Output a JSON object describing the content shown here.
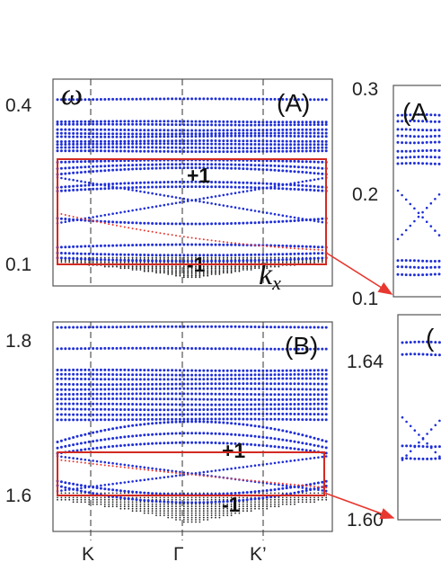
{
  "chart_data": [
    {
      "id": "A",
      "type": "scatter",
      "panel_label": "(A)",
      "ylabel": "ω",
      "xlabel": "k_x",
      "y_ticks": [
        "0.4",
        "0.1"
      ],
      "ylim": [
        0.08,
        0.43
      ],
      "colors": {
        "edge": "#1f2fd6",
        "bulk": "#222222",
        "highlight": "#e8372f",
        "gridline": "#444444"
      },
      "annotations": [
        "+1",
        "-1"
      ],
      "flat_bands": [
        0.396,
        0.358,
        0.353,
        0.344,
        0.338,
        0.333,
        0.325,
        0.32,
        0.314,
        0.308
      ],
      "dispersive_bands": [
        {
          "center": 0.289,
          "curvature": -0.004
        },
        {
          "center": 0.278,
          "curvature": -0.008
        },
        {
          "center": 0.268,
          "curvature": -0.012
        },
        {
          "center": 0.246,
          "curvature": -0.01
        },
        {
          "center": 0.24,
          "curvature": -0.008
        },
        {
          "center": 0.195,
          "curvature": 0.01
        },
        {
          "center": 0.145,
          "curvature": -0.005
        },
        {
          "center": 0.136,
          "curvature": 0.004
        },
        {
          "center": 0.128,
          "curvature": 0.006
        }
      ],
      "crossing": {
        "center": 0.226,
        "left": 0.265,
        "right": 0.185
      },
      "red_edge_state": {
        "left": 0.205,
        "right": 0.14,
        "mid": 0.15
      },
      "bulk_fill": {
        "top": 0.128,
        "bottom": 0.092,
        "span": 0.6
      },
      "highlight_box": {
        "ymin": 0.11,
        "ymax": 0.282
      }
    },
    {
      "id": "A-inset",
      "type": "scatter",
      "panel_label": "(A",
      "y_ticks": [
        "0.3",
        "0.2",
        "0.1"
      ],
      "ylim": [
        0.1,
        0.3
      ],
      "flat_bands": [
        0.272,
        0.266,
        0.258,
        0.252,
        0.246,
        0.238,
        0.232,
        0.226,
        0.134,
        0.128,
        0.121
      ],
      "crossing": {
        "center": 0.183,
        "left": 0.205,
        "right": 0.15
      }
    },
    {
      "id": "B",
      "type": "scatter",
      "panel_label": "(B)",
      "x_ticks": [
        "K",
        "Γ",
        "K’"
      ],
      "y_ticks": [
        "1.8",
        "1.6"
      ],
      "ylim": [
        1.555,
        1.845
      ],
      "annotations": [
        "+1",
        "-1"
      ],
      "flat_bands": [
        1.838,
        1.808,
        1.778,
        1.772,
        1.766,
        1.759,
        1.752,
        1.745,
        1.738,
        1.731,
        1.724,
        1.717,
        1.71
      ],
      "dispersive_bands": [
        {
          "center": 1.677,
          "curvature": -0.03
        },
        {
          "center": 1.669,
          "curvature": -0.022
        },
        {
          "center": 1.662,
          "curvature": -0.016
        },
        {
          "center": 1.626,
          "curvature": 0.02
        },
        {
          "center": 1.62,
          "curvature": 0.025
        }
      ],
      "crossing": {
        "center": 1.64,
        "left": 1.66,
        "right": 1.61
      },
      "red_edge_state": {
        "left": 1.655,
        "right": 1.615,
        "mid": 1.632
      },
      "bulk_fill": {
        "top": 1.608,
        "bottom": 1.565,
        "span": 0.62
      },
      "highlight_box": {
        "ymin": 1.598,
        "ymax": 1.663
      }
    },
    {
      "id": "B-inset",
      "type": "scatter",
      "panel_label": "(",
      "y_ticks": [
        "1.64",
        "1.60"
      ],
      "ylim": [
        1.598,
        1.665
      ],
      "flat_bands": [
        1.656,
        1.652,
        1.622,
        1.618
      ],
      "crossing": {
        "center": 1.626,
        "left": 1.633,
        "right": 1.616
      }
    }
  ]
}
